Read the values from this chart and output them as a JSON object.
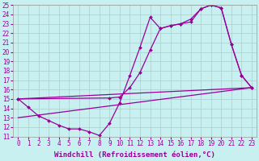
{
  "background_color": "#c8f0f0",
  "line_color": "#990099",
  "grid_color": "#aacccc",
  "xlim_min": -0.5,
  "xlim_max": 23.5,
  "ylim_min": 11,
  "ylim_max": 25,
  "xticks": [
    0,
    1,
    2,
    3,
    4,
    5,
    6,
    7,
    8,
    9,
    10,
    11,
    12,
    13,
    14,
    15,
    16,
    17,
    18,
    19,
    20,
    21,
    22,
    23
  ],
  "yticks": [
    11,
    12,
    13,
    14,
    15,
    16,
    17,
    18,
    19,
    20,
    21,
    22,
    23,
    24,
    25
  ],
  "xlabel": "Windchill (Refroidissement éolien,°C)",
  "line1_x": [
    0,
    1,
    2,
    3,
    4,
    5,
    6,
    7,
    8,
    9,
    10,
    11,
    12,
    13,
    14,
    15,
    16,
    17,
    18,
    19,
    20,
    21,
    22,
    23
  ],
  "line1_y": [
    15.0,
    14.1,
    13.2,
    12.7,
    12.2,
    11.8,
    11.8,
    11.5,
    11.1,
    12.4,
    14.6,
    17.5,
    20.5,
    23.7,
    22.5,
    22.8,
    23.0,
    23.2,
    24.6,
    25.0,
    24.7,
    20.8,
    17.5,
    16.2
  ],
  "line2_x": [
    0,
    9,
    10,
    11,
    12,
    13,
    14,
    15,
    16,
    17,
    18,
    19,
    20,
    21,
    22,
    23
  ],
  "line2_y": [
    15.0,
    15.1,
    15.2,
    16.2,
    17.8,
    20.2,
    22.5,
    22.8,
    23.0,
    23.5,
    24.6,
    25.0,
    24.7,
    20.8,
    17.5,
    16.2
  ],
  "line3_x": [
    0,
    23
  ],
  "line3_y": [
    15.0,
    16.2
  ],
  "line4_x": [
    0,
    23
  ],
  "line4_y": [
    13.0,
    16.2
  ],
  "marker": "D",
  "markersize": 2.0,
  "linewidth": 0.9,
  "xlabel_fontsize": 6.5,
  "tick_fontsize": 5.5
}
